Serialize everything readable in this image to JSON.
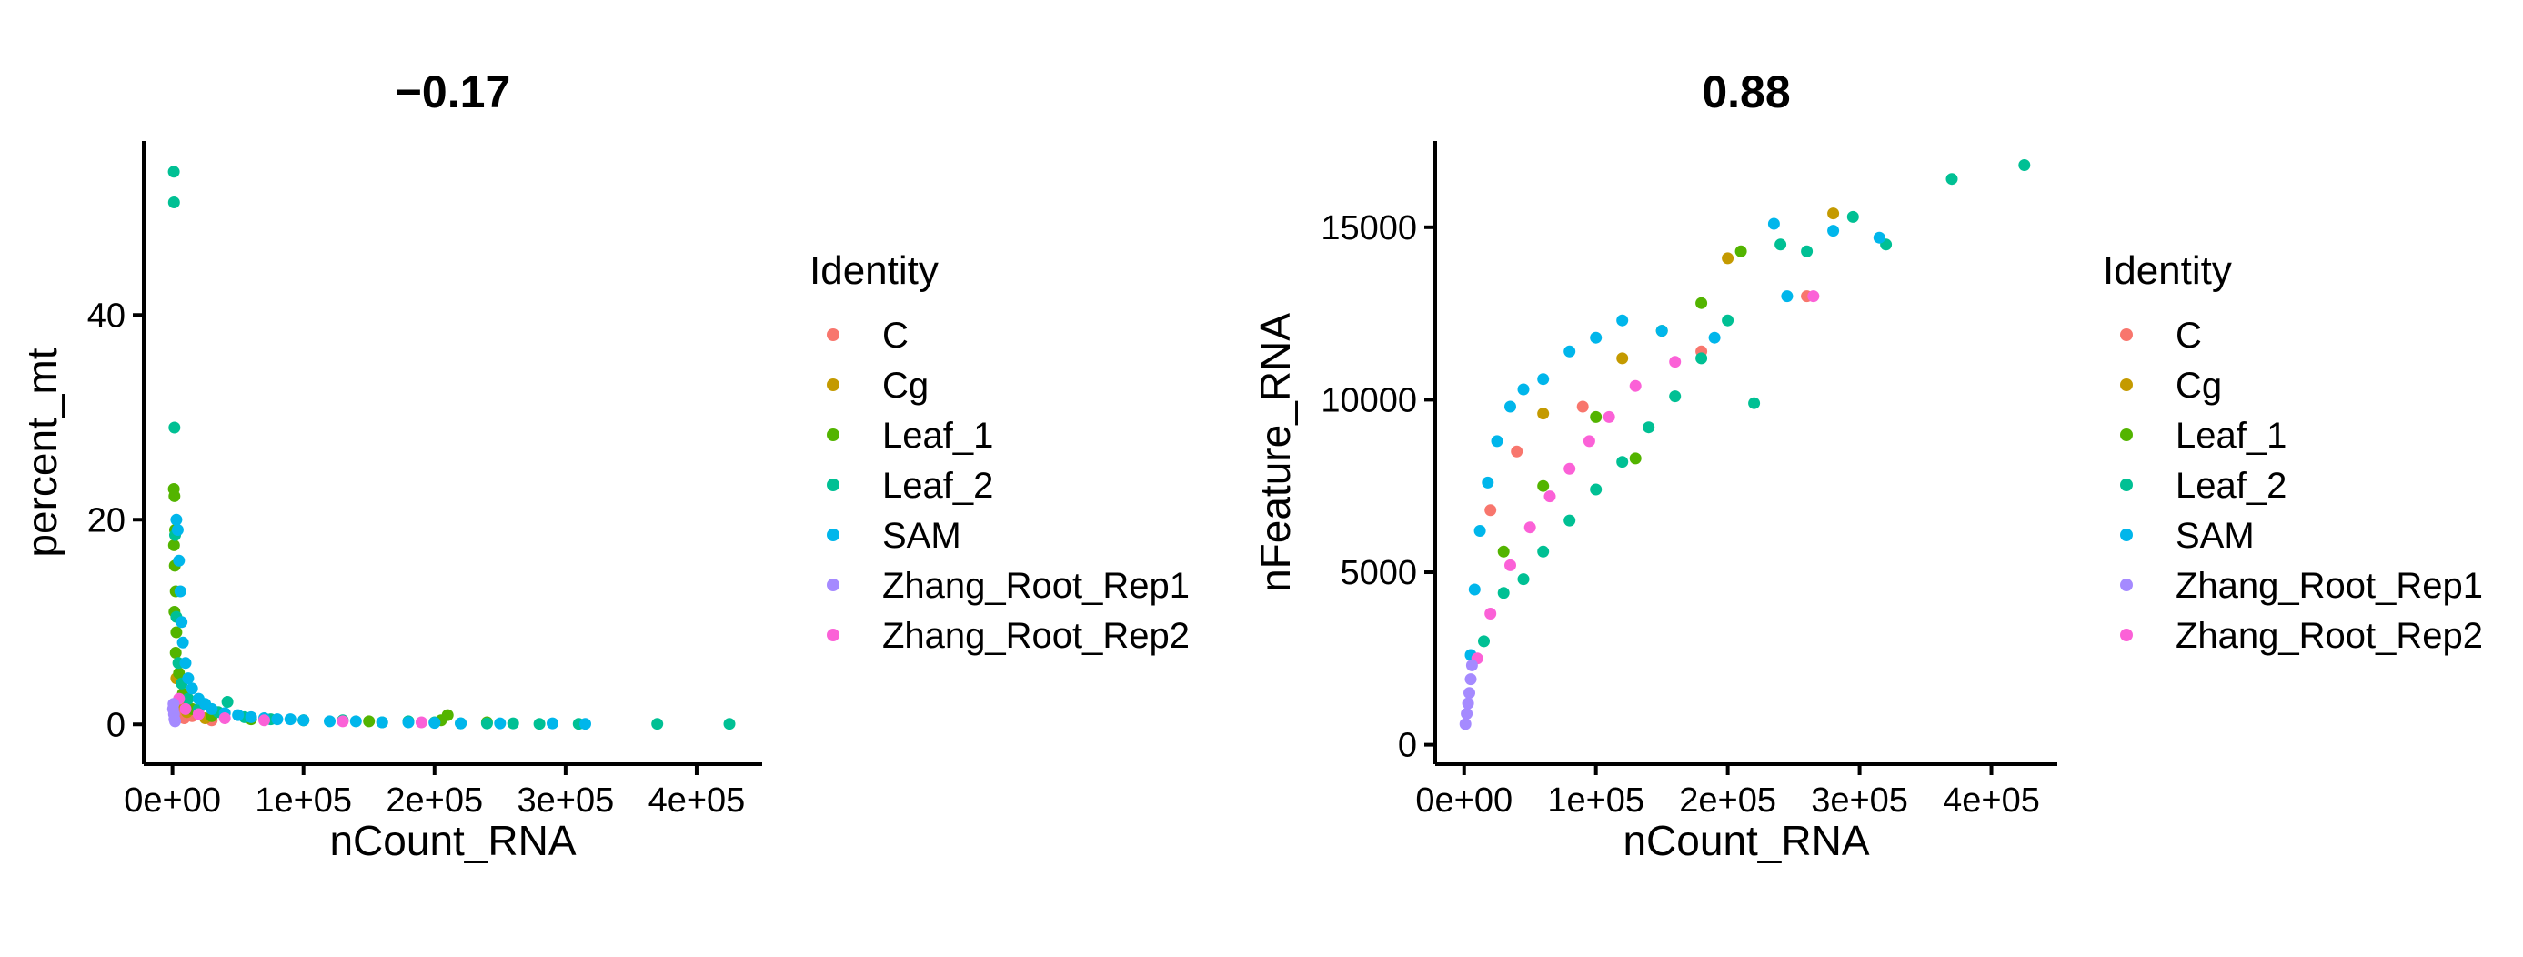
{
  "legend": {
    "title": "Identity",
    "items": [
      {
        "label": "C",
        "color": "#F8766D"
      },
      {
        "label": "Cg",
        "color": "#C49A00"
      },
      {
        "label": "Leaf_1",
        "color": "#53B400"
      },
      {
        "label": "Leaf_2",
        "color": "#00C094"
      },
      {
        "label": "SAM",
        "color": "#00B6EB"
      },
      {
        "label": "Zhang_Root_Rep1",
        "color": "#A58AFF"
      },
      {
        "label": "Zhang_Root_Rep2",
        "color": "#FB61D7"
      }
    ]
  },
  "chart_data": [
    {
      "type": "scatter",
      "title": "−0.17",
      "xlabel": "nCount_RNA",
      "ylabel": "percent_mt",
      "xlim": [
        -15000,
        450000
      ],
      "ylim": [
        -3,
        57
      ],
      "xticks": [
        0,
        100000,
        200000,
        300000,
        400000
      ],
      "xtick_labels": [
        "0e+00",
        "1e+05",
        "2e+05",
        "3e+05",
        "4e+05"
      ],
      "yticks": [
        0,
        20,
        40
      ],
      "ytick_labels": [
        "0",
        "20",
        "40"
      ],
      "grid": false,
      "legend_position": "right",
      "series": [
        {
          "name": "C",
          "points": [
            [
              4000,
              1.2
            ],
            [
              9000,
              0.6
            ],
            [
              15000,
              0.8
            ],
            [
              30000,
              0.4
            ]
          ]
        },
        {
          "name": "Cg",
          "points": [
            [
              3000,
              4.5
            ],
            [
              6000,
              2.0
            ],
            [
              11000,
              1.2
            ],
            [
              25000,
              0.6
            ]
          ]
        },
        {
          "name": "Leaf_1",
          "points": [
            [
              1000,
              23.0
            ],
            [
              1500,
              22.3
            ],
            [
              2000,
              19.0
            ],
            [
              1200,
              17.5
            ],
            [
              1800,
              15.5
            ],
            [
              2500,
              13.0
            ],
            [
              1500,
              11.0
            ],
            [
              3000,
              9.0
            ],
            [
              2500,
              7.0
            ],
            [
              5000,
              5.0
            ],
            [
              8000,
              3.0
            ],
            [
              15000,
              1.5
            ],
            [
              30000,
              0.8
            ],
            [
              60000,
              0.5
            ],
            [
              100000,
              0.4
            ],
            [
              150000,
              0.3
            ],
            [
              205000,
              0.4
            ],
            [
              210000,
              0.9
            ],
            [
              240000,
              0.2
            ]
          ]
        },
        {
          "name": "Leaf_2",
          "points": [
            [
              1000,
              54.0
            ],
            [
              1200,
              51.0
            ],
            [
              1500,
              29.0
            ],
            [
              2000,
              18.5
            ],
            [
              3000,
              10.5
            ],
            [
              4500,
              6.0
            ],
            [
              7000,
              4.0
            ],
            [
              12000,
              2.5
            ],
            [
              20000,
              1.5
            ],
            [
              35000,
              1.2
            ],
            [
              42000,
              2.2
            ],
            [
              55000,
              0.7
            ],
            [
              75000,
              0.5
            ],
            [
              100000,
              0.4
            ],
            [
              130000,
              0.4
            ],
            [
              160000,
              0.2
            ],
            [
              180000,
              0.3
            ],
            [
              200000,
              0.2
            ],
            [
              220000,
              0.1
            ],
            [
              240000,
              0.1
            ],
            [
              260000,
              0.1
            ],
            [
              280000,
              0.05
            ],
            [
              310000,
              0.05
            ],
            [
              370000,
              0.05
            ],
            [
              425000,
              0.05
            ]
          ]
        },
        {
          "name": "SAM",
          "points": [
            [
              3000,
              20.0
            ],
            [
              4000,
              19.0
            ],
            [
              5000,
              16.0
            ],
            [
              6000,
              13.0
            ],
            [
              7000,
              10.0
            ],
            [
              8000,
              8.0
            ],
            [
              10000,
              6.0
            ],
            [
              12000,
              4.5
            ],
            [
              15000,
              3.5
            ],
            [
              20000,
              2.5
            ],
            [
              25000,
              2.0
            ],
            [
              30000,
              1.5
            ],
            [
              40000,
              1.1
            ],
            [
              50000,
              0.9
            ],
            [
              60000,
              0.7
            ],
            [
              70000,
              0.6
            ],
            [
              80000,
              0.5
            ],
            [
              90000,
              0.5
            ],
            [
              100000,
              0.4
            ],
            [
              120000,
              0.3
            ],
            [
              140000,
              0.3
            ],
            [
              160000,
              0.2
            ],
            [
              180000,
              0.2
            ],
            [
              200000,
              0.15
            ],
            [
              220000,
              0.1
            ],
            [
              250000,
              0.1
            ],
            [
              290000,
              0.1
            ],
            [
              315000,
              0.05
            ]
          ]
        },
        {
          "name": "Zhang_Root_Rep1",
          "points": [
            [
              500,
              1.5
            ],
            [
              800,
              2.0
            ],
            [
              1200,
              1.0
            ],
            [
              1500,
              0.5
            ],
            [
              2000,
              0.3
            ]
          ]
        },
        {
          "name": "Zhang_Root_Rep2",
          "points": [
            [
              5000,
              2.5
            ],
            [
              10000,
              1.5
            ],
            [
              20000,
              1.0
            ],
            [
              40000,
              0.6
            ],
            [
              70000,
              0.4
            ],
            [
              130000,
              0.3
            ],
            [
              190000,
              0.2
            ]
          ]
        }
      ]
    },
    {
      "type": "scatter",
      "title": "0.88",
      "xlabel": "nCount_RNA",
      "ylabel": "nFeature_RNA",
      "xlim": [
        -15000,
        450000
      ],
      "ylim": [
        -300,
        17500
      ],
      "xticks": [
        0,
        100000,
        200000,
        300000,
        400000
      ],
      "xtick_labels": [
        "0e+00",
        "1e+05",
        "2e+05",
        "3e+05",
        "4e+05"
      ],
      "yticks": [
        0,
        5000,
        10000,
        15000
      ],
      "ytick_labels": [
        "0",
        "5000",
        "10000",
        "15000"
      ],
      "grid": false,
      "legend_position": "right",
      "series": [
        {
          "name": "C",
          "points": [
            [
              20000,
              6800
            ],
            [
              40000,
              8500
            ],
            [
              90000,
              9800
            ],
            [
              180000,
              11400
            ],
            [
              260000,
              13000
            ]
          ]
        },
        {
          "name": "Cg",
          "points": [
            [
              60000,
              9600
            ],
            [
              120000,
              11200
            ],
            [
              200000,
              14100
            ],
            [
              280000,
              15400
            ]
          ]
        },
        {
          "name": "Leaf_1",
          "points": [
            [
              30000,
              5600
            ],
            [
              60000,
              7500
            ],
            [
              100000,
              9500
            ],
            [
              130000,
              8300
            ],
            [
              150000,
              12000
            ],
            [
              180000,
              12800
            ],
            [
              210000,
              14300
            ]
          ]
        },
        {
          "name": "Leaf_2",
          "points": [
            [
              15000,
              3000
            ],
            [
              30000,
              4400
            ],
            [
              45000,
              4800
            ],
            [
              60000,
              5600
            ],
            [
              80000,
              6500
            ],
            [
              100000,
              7400
            ],
            [
              120000,
              8200
            ],
            [
              140000,
              9200
            ],
            [
              160000,
              10100
            ],
            [
              180000,
              11200
            ],
            [
              200000,
              12300
            ],
            [
              220000,
              9900
            ],
            [
              240000,
              14500
            ],
            [
              260000,
              14300
            ],
            [
              295000,
              15300
            ],
            [
              320000,
              14500
            ],
            [
              370000,
              16400
            ],
            [
              425000,
              16800
            ]
          ]
        },
        {
          "name": "SAM",
          "points": [
            [
              5000,
              2600
            ],
            [
              8000,
              4500
            ],
            [
              12000,
              6200
            ],
            [
              18000,
              7600
            ],
            [
              25000,
              8800
            ],
            [
              35000,
              9800
            ],
            [
              45000,
              10300
            ],
            [
              60000,
              10600
            ],
            [
              80000,
              11400
            ],
            [
              100000,
              11800
            ],
            [
              120000,
              12300
            ],
            [
              150000,
              12000
            ],
            [
              190000,
              11800
            ],
            [
              235000,
              15100
            ],
            [
              245000,
              13000
            ],
            [
              280000,
              14900
            ],
            [
              315000,
              14700
            ]
          ]
        },
        {
          "name": "Zhang_Root_Rep1",
          "points": [
            [
              1000,
              600
            ],
            [
              2000,
              900
            ],
            [
              3000,
              1200
            ],
            [
              4000,
              1500
            ],
            [
              5000,
              1900
            ],
            [
              6000,
              2300
            ]
          ]
        },
        {
          "name": "Zhang_Root_Rep2",
          "points": [
            [
              10000,
              2500
            ],
            [
              20000,
              3800
            ],
            [
              35000,
              5200
            ],
            [
              50000,
              6300
            ],
            [
              65000,
              7200
            ],
            [
              80000,
              8000
            ],
            [
              95000,
              8800
            ],
            [
              110000,
              9500
            ],
            [
              130000,
              10400
            ],
            [
              160000,
              11100
            ],
            [
              265000,
              13000
            ]
          ]
        }
      ]
    }
  ]
}
